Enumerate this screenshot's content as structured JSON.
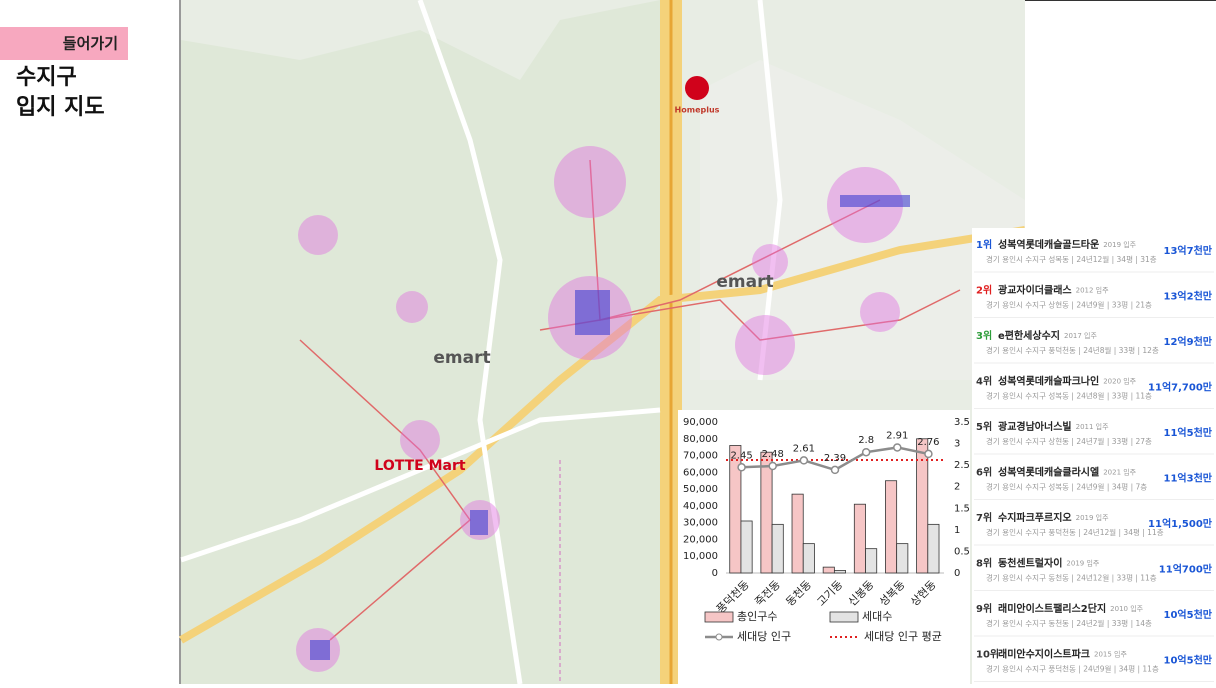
{
  "header": {
    "tag": "들어가기",
    "title_lines": [
      "수지구",
      "입지 지도"
    ]
  },
  "map": {
    "labels": [
      {
        "text": "Homeplus",
        "color": "#c0392b"
      },
      {
        "text": "emart",
        "color": "#555555"
      },
      {
        "text": "emart",
        "color": "#555555"
      },
      {
        "text": "LOTTE Mart",
        "color": "#d0021b"
      }
    ]
  },
  "chart_data": {
    "type": "bar",
    "categories": [
      "풍덕천동",
      "죽전동",
      "동천동",
      "고기동",
      "신봉동",
      "성복동",
      "상현동"
    ],
    "series": [
      {
        "name": "총인구수",
        "color": "#f6c6c6",
        "values": [
          76000,
          72000,
          47000,
          3500,
          41000,
          55000,
          80000
        ]
      },
      {
        "name": "세대수",
        "color": "#e3e3e3",
        "values": [
          31000,
          29000,
          17500,
          1500,
          14500,
          17500,
          29000
        ]
      },
      {
        "name": "세대당 인구",
        "color": "#8c8c8c",
        "type": "line",
        "axis": "y2",
        "values": [
          2.45,
          2.48,
          2.61,
          2.39,
          2.8,
          2.91,
          2.76
        ]
      }
    ],
    "reference_line": {
      "name": "세대당 인구 평균",
      "color": "#e02020",
      "value": 2.62,
      "axis": "y2"
    },
    "ylim": [
      0,
      90000
    ],
    "yticks": [
      0,
      {
        "value": 10000,
        "label": "10,000"
      },
      {
        "value": 20000,
        "label": "20,000"
      },
      {
        "value": 30000,
        "label": "30,000"
      },
      {
        "value": 40000,
        "label": "40,000"
      },
      {
        "value": 50000,
        "label": "50,000"
      },
      {
        "value": 60000,
        "label": "60,000"
      },
      {
        "value": 70000,
        "label": "70,000"
      },
      {
        "value": 80000,
        "label": "80,000"
      },
      {
        "value": 90000,
        "label": "90,000"
      }
    ],
    "y2lim": [
      0,
      3.5
    ],
    "y2ticks": [
      0,
      0.5,
      1,
      1.5,
      2,
      2.5,
      3,
      3.5
    ]
  },
  "ranking": [
    {
      "rank": "1위",
      "rank_color": "#1a56d6",
      "name": "성복역롯데캐슬골드타운",
      "year": "2019 입주",
      "detail": "경기 용인시 수지구 성복동 | 24년12월 | 34평 | 31층",
      "price": "13억7천만"
    },
    {
      "rank": "2위",
      "rank_color": "#e02020",
      "name": "광교자이더클래스",
      "year": "2012 입주",
      "detail": "경기 용인시 수지구 상현동 | 24년9월 | 33평 | 21층",
      "price": "13억2천만"
    },
    {
      "rank": "3위",
      "rank_color": "#2e9d3a",
      "name": "e편한세상수지",
      "year": "2017 입주",
      "detail": "경기 용인시 수지구 풍덕천동 | 24년8월 | 33평 | 12층",
      "price": "12억9천만"
    },
    {
      "rank": "4위",
      "rank_color": "#333333",
      "name": "성복역롯데캐슬파크나인",
      "year": "2020 입주",
      "detail": "경기 용인시 수지구 성복동 | 24년8월 | 33평 | 11층",
      "price": "11억7,700만"
    },
    {
      "rank": "5위",
      "rank_color": "#333333",
      "name": "광교경남아너스빌",
      "year": "2011 입주",
      "detail": "경기 용인시 수지구 상현동 | 24년7월 | 33평 | 27층",
      "price": "11억5천만"
    },
    {
      "rank": "6위",
      "rank_color": "#333333",
      "name": "성복역롯데캐슬클라시엘",
      "year": "2021 입주",
      "detail": "경기 용인시 수지구 성복동 | 24년9월 | 34평 | 7층",
      "price": "11억3천만"
    },
    {
      "rank": "7위",
      "rank_color": "#333333",
      "name": "수지파크푸르지오",
      "year": "2019 입주",
      "detail": "경기 용인시 수지구 풍덕천동 | 24년12월 | 34평 | 11층",
      "price": "11억1,500만"
    },
    {
      "rank": "8위",
      "rank_color": "#333333",
      "name": "동천센트럴자이",
      "year": "2019 입주",
      "detail": "경기 용인시 수지구 동천동 | 24년12월 | 33평 | 11층",
      "price": "11억700만"
    },
    {
      "rank": "9위",
      "rank_color": "#333333",
      "name": "래미안이스트팰리스2단지",
      "year": "2010 입주",
      "detail": "경기 용인시 수지구 동천동 | 24년2월 | 33평 | 14층",
      "price": "10억5천만"
    },
    {
      "rank": "10위",
      "rank_color": "#333333",
      "name": "래미안수지이스트파크",
      "year": "2015 입주",
      "detail": "경기 용인시 수지구 풍덕천동 | 24년9월 | 34평 | 11층",
      "price": "10억5천만"
    }
  ]
}
